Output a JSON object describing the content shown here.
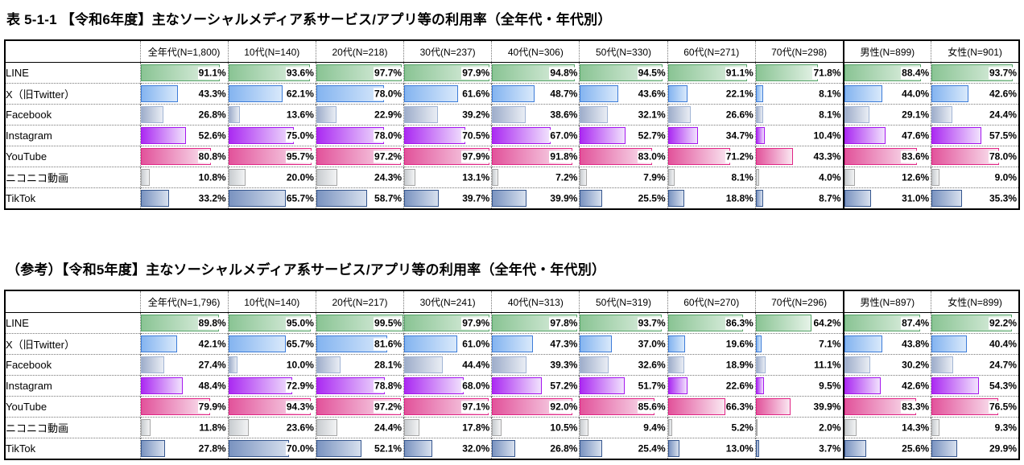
{
  "page": {
    "unit": "%",
    "bar_scale_max": 100
  },
  "bar_styles": {
    "LINE": {
      "border": "#55a468",
      "from": "#8ac494",
      "to": "#e6f3e8"
    },
    "X（旧Twitter）": {
      "border": "#3c7cd8",
      "from": "#84b4f0",
      "to": "#d9e9fb"
    },
    "Facebook": {
      "border": "#a0b4d4",
      "from": "#9fAECB",
      "to": "#e9edf4"
    },
    "Instagram": {
      "border": "#a516ee",
      "from": "#ab2bf2",
      "to": "#f1e2fd"
    },
    "YouTube": {
      "border": "#e02585",
      "from": "#e2539b",
      "to": "#fae8f2"
    },
    "ニコニコ動画": {
      "border": "#a6a6a6",
      "from": "#c8ccd0",
      "to": "#f2f3f4"
    },
    "TikTok": {
      "border": "#35568e",
      "from": "#7a93c0",
      "to": "#d7e0ee"
    }
  },
  "chart_data": [
    {
      "type": "table",
      "title": "表 5-1-1 【令和6年度】主なソーシャルメディア系サービス/アプリ等の利用率（全年代・年代別）",
      "unit": "%",
      "bar_scale_max": 100,
      "columns": [
        "全年代(N=1,800)",
        "10代(N=140)",
        "20代(N=218)",
        "30代(N=237)",
        "40代(N=306)",
        "50代(N=330)",
        "60代(N=271)",
        "70代(N=298)",
        "男性(N=899)",
        "女性(N=901)"
      ],
      "rows": [
        {
          "label": "LINE",
          "values": [
            91.1,
            93.6,
            97.7,
            97.9,
            94.8,
            94.5,
            91.1,
            71.8,
            88.4,
            93.7
          ]
        },
        {
          "label": "X（旧Twitter）",
          "values": [
            43.3,
            62.1,
            78.0,
            61.6,
            48.7,
            43.6,
            22.1,
            8.1,
            44.0,
            42.6
          ]
        },
        {
          "label": "Facebook",
          "values": [
            26.8,
            13.6,
            22.9,
            39.2,
            38.6,
            32.1,
            26.6,
            8.1,
            29.1,
            24.4
          ]
        },
        {
          "label": "Instagram",
          "values": [
            52.6,
            75.0,
            78.0,
            70.5,
            67.0,
            52.7,
            34.7,
            10.4,
            47.6,
            57.5
          ]
        },
        {
          "label": "YouTube",
          "values": [
            80.8,
            95.7,
            97.2,
            97.9,
            91.8,
            83.0,
            71.2,
            43.3,
            83.6,
            78.0
          ]
        },
        {
          "label": "ニコニコ動画",
          "values": [
            10.8,
            20.0,
            24.3,
            13.1,
            7.2,
            7.9,
            8.1,
            4.0,
            12.6,
            9.0
          ]
        },
        {
          "label": "TikTok",
          "values": [
            33.2,
            65.7,
            58.7,
            39.7,
            39.9,
            25.5,
            18.8,
            8.7,
            31.0,
            35.3
          ]
        }
      ]
    },
    {
      "type": "table",
      "title": "（参考）【令和5年度】主なソーシャルメディア系サービス/アプリ等の利用率（全年代・年代別）",
      "unit": "%",
      "bar_scale_max": 100,
      "columns": [
        "全年代(N=1,796)",
        "10代(N=140)",
        "20代(N=217)",
        "30代(N=241)",
        "40代(N=313)",
        "50代(N=319)",
        "60代(N=270)",
        "70代(N=296)",
        "男性(N=897)",
        "女性(N=899)"
      ],
      "rows": [
        {
          "label": "LINE",
          "values": [
            89.8,
            95.0,
            99.5,
            97.9,
            97.8,
            93.7,
            86.3,
            64.2,
            87.4,
            92.2
          ]
        },
        {
          "label": "X（旧Twitter）",
          "values": [
            42.1,
            65.7,
            81.6,
            61.0,
            47.3,
            37.0,
            19.6,
            7.1,
            43.8,
            40.4
          ]
        },
        {
          "label": "Facebook",
          "values": [
            27.4,
            10.0,
            28.1,
            44.4,
            39.3,
            32.6,
            18.9,
            11.1,
            30.2,
            24.7
          ]
        },
        {
          "label": "Instagram",
          "values": [
            48.4,
            72.9,
            78.8,
            68.0,
            57.2,
            51.7,
            22.6,
            9.5,
            42.6,
            54.3
          ]
        },
        {
          "label": "YouTube",
          "values": [
            79.9,
            94.3,
            97.2,
            97.1,
            92.0,
            85.6,
            66.3,
            39.9,
            83.3,
            76.5
          ]
        },
        {
          "label": "ニコニコ動画",
          "values": [
            11.8,
            23.6,
            24.4,
            17.8,
            10.5,
            9.4,
            5.2,
            2.0,
            14.3,
            9.3
          ]
        },
        {
          "label": "TikTok",
          "values": [
            27.8,
            70.0,
            52.1,
            32.0,
            26.8,
            25.4,
            13.0,
            3.7,
            25.6,
            29.9
          ]
        }
      ]
    }
  ]
}
